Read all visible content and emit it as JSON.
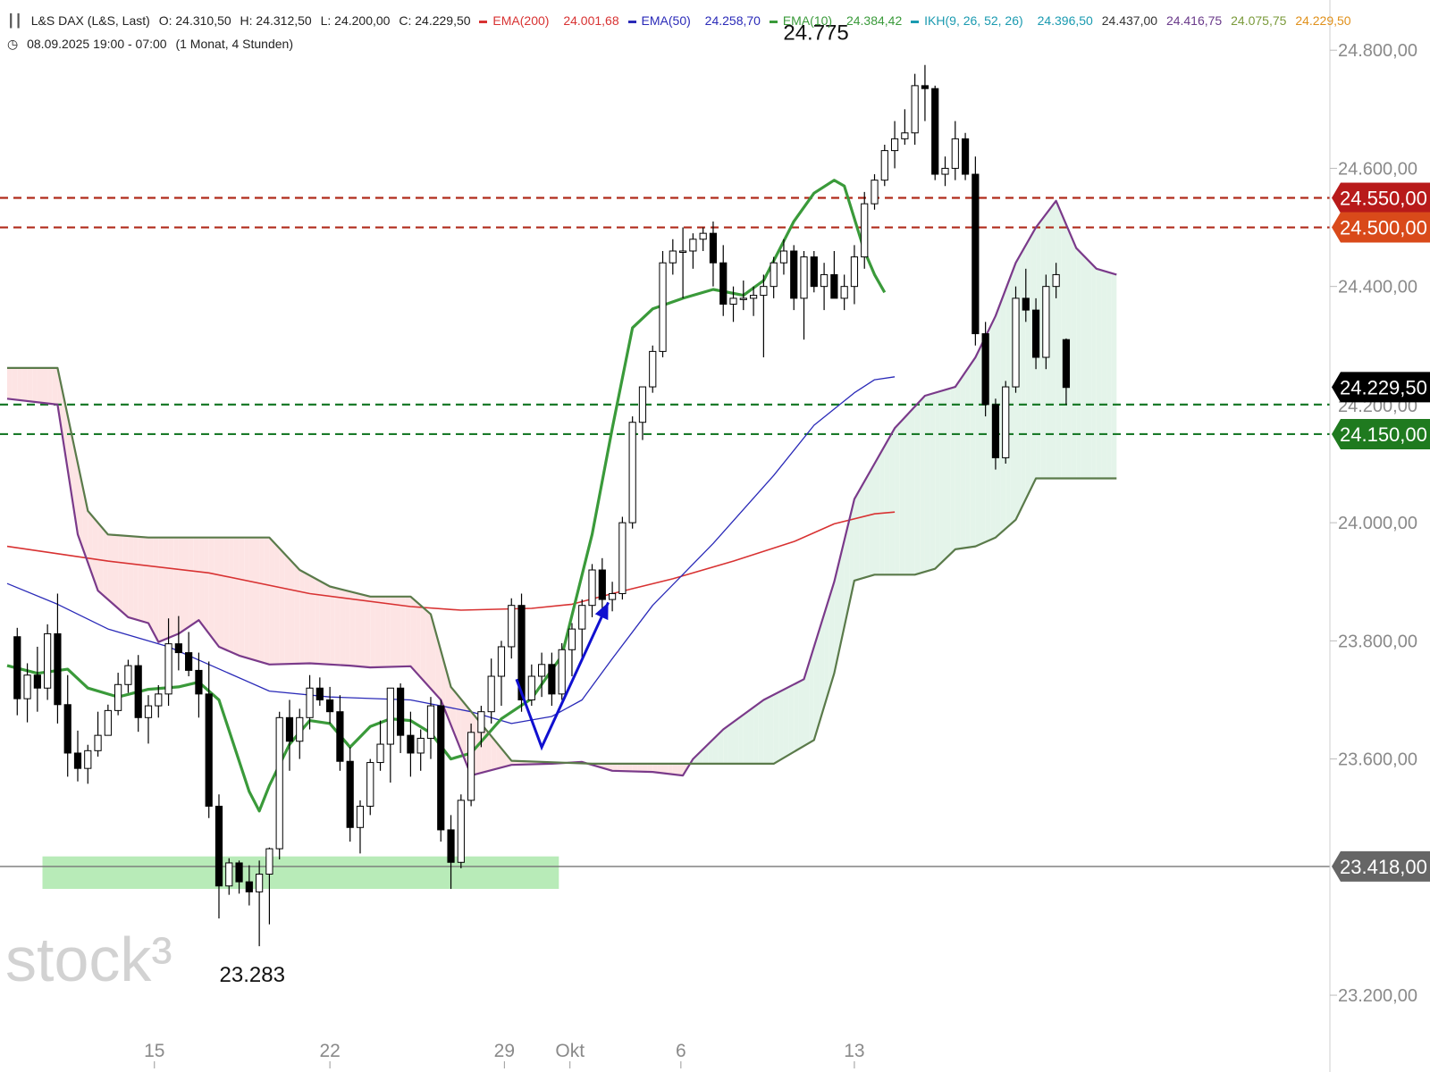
{
  "header": {
    "instrument": "L&S DAX (L&S, Last)",
    "ohlc": {
      "o": "O: 24.310,50",
      "h": "H: 24.312,50",
      "l": "L: 24.200,00",
      "c": "C: 24.229,50"
    },
    "ema200_label": "EMA(200)",
    "ema200_value": "24.001,68",
    "ema50_label": "EMA(50)",
    "ema50_value": "24.258,70",
    "ema10_label": "EMA(10)",
    "ema10_value": "24.384,42",
    "ikh_label": "IKH(9, 26, 52, 26)",
    "ikh_values": [
      "24.396,50",
      "24.437,00",
      "24.416,75",
      "24.075,75",
      "24.229,50"
    ],
    "period": "08.09.2025 19:00 - 07:00",
    "timeframe": "(1 Monat, 4 Stunden)"
  },
  "watermark": "stock³",
  "colors": {
    "ema200": "#d83232",
    "ema50": "#2a2ab8",
    "ema10": "#3a9a3a",
    "senkouA": "#7a3a8a",
    "senkouB": "#5a7a4a",
    "cloud_bear": "#fde4e4",
    "cloud_bull": "#e4f4ea",
    "candle": "#000000",
    "resistance": "#b02a1a",
    "support": "#1a7a2a",
    "zone": "#b8ebb8",
    "arrow": "#1010d0"
  },
  "chart_data": {
    "type": "candlestick",
    "title": "L&S DAX (L&S, Last)",
    "x_ticks": [
      "15",
      "22",
      "29",
      "Okt",
      "6",
      "13"
    ],
    "y_ticks": [
      "24.800,00",
      "24.600,00",
      "24.400,00",
      "24.000,00",
      "23.800,00",
      "23.600,00",
      "23.200,00"
    ],
    "ylim": [
      23070,
      24885
    ],
    "n_slots": 122,
    "x_tick_slots": [
      14.6,
      32,
      49.3,
      55.8,
      66.8,
      84
    ],
    "price_tags": [
      {
        "label": "24.550,00",
        "value": 24550,
        "color": "#b81a1a"
      },
      {
        "label": "24.500,00",
        "value": 24500,
        "color": "#d94a1a"
      },
      {
        "label": "24.229,50",
        "value": 24229.5,
        "color": "#000000"
      },
      {
        "label": "24.150,00",
        "value": 24150,
        "color": "#1f7a1f"
      },
      {
        "label": "23.418,00",
        "value": 23418,
        "color": "#666666"
      }
    ],
    "hidden_tag_text": "24.200,00",
    "annotations": [
      {
        "text": "24.775",
        "slot": 80.2,
        "value": 24775
      },
      {
        "text": "23.283",
        "slot": 24.3,
        "value": 23283
      }
    ],
    "levels": {
      "resistance": [
        24550,
        24500
      ],
      "support": [
        24200,
        24150
      ],
      "line": 23418
    },
    "support_zone": {
      "from_slot": 3.5,
      "to_slot": 54.7,
      "low": 23380,
      "high": 23435
    },
    "arrow": {
      "points": [
        [
          50.5,
          23735
        ],
        [
          53,
          23620
        ],
        [
          59.6,
          23865
        ]
      ]
    },
    "candles": [
      [
        23807,
        23822,
        23674,
        23702
      ],
      [
        23702,
        23762,
        23662,
        23742
      ],
      [
        23742,
        23790,
        23680,
        23720
      ],
      [
        23720,
        23828,
        23700,
        23812
      ],
      [
        23812,
        23880,
        23660,
        23692
      ],
      [
        23692,
        23742,
        23570,
        23610
      ],
      [
        23610,
        23648,
        23562,
        23584
      ],
      [
        23584,
        23624,
        23558,
        23614
      ],
      [
        23614,
        23680,
        23604,
        23640
      ],
      [
        23640,
        23692,
        23640,
        23682
      ],
      [
        23682,
        23746,
        23674,
        23726
      ],
      [
        23726,
        23768,
        23712,
        23758
      ],
      [
        23758,
        23776,
        23646,
        23670
      ],
      [
        23670,
        23708,
        23626,
        23690
      ],
      [
        23690,
        23725,
        23670,
        23710
      ],
      [
        23710,
        23838,
        23690,
        23795
      ],
      [
        23795,
        23842,
        23750,
        23780
      ],
      [
        23780,
        23815,
        23740,
        23750
      ],
      [
        23750,
        23780,
        23670,
        23710
      ],
      [
        23710,
        23765,
        23500,
        23520
      ],
      [
        23520,
        23540,
        23330,
        23385
      ],
      [
        23385,
        23432,
        23370,
        23424
      ],
      [
        23424,
        23428,
        23372,
        23392
      ],
      [
        23392,
        23420,
        23352,
        23375
      ],
      [
        23375,
        23428,
        23283,
        23405
      ],
      [
        23405,
        23450,
        23320,
        23448
      ],
      [
        23448,
        23680,
        23430,
        23670
      ],
      [
        23670,
        23700,
        23580,
        23630
      ],
      [
        23630,
        23685,
        23600,
        23670
      ],
      [
        23670,
        23742,
        23650,
        23720
      ],
      [
        23720,
        23738,
        23690,
        23700
      ],
      [
        23700,
        23722,
        23660,
        23680
      ],
      [
        23680,
        23708,
        23580,
        23596
      ],
      [
        23596,
        23620,
        23460,
        23484
      ],
      [
        23484,
        23530,
        23440,
        23520
      ],
      [
        23520,
        23600,
        23505,
        23594
      ],
      [
        23594,
        23665,
        23580,
        23625
      ],
      [
        23625,
        23710,
        23560,
        23720
      ],
      [
        23720,
        23728,
        23610,
        23640
      ],
      [
        23640,
        23680,
        23570,
        23610
      ],
      [
        23610,
        23650,
        23580,
        23635
      ],
      [
        23635,
        23705,
        23600,
        23690
      ],
      [
        23690,
        23700,
        23460,
        23480
      ],
      [
        23480,
        23505,
        23380,
        23425
      ],
      [
        23425,
        23540,
        23415,
        23530
      ],
      [
        23530,
        23660,
        23520,
        23645
      ],
      [
        23645,
        23690,
        23620,
        23680
      ],
      [
        23680,
        23770,
        23660,
        23740
      ],
      [
        23740,
        23800,
        23690,
        23790
      ],
      [
        23790,
        23872,
        23770,
        23860
      ],
      [
        23860,
        23880,
        23680,
        23700
      ],
      [
        23700,
        23760,
        23690,
        23740
      ],
      [
        23740,
        23780,
        23705,
        23760
      ],
      [
        23760,
        23780,
        23690,
        23710
      ],
      [
        23710,
        23796,
        23700,
        23785
      ],
      [
        23785,
        23830,
        23740,
        23820
      ],
      [
        23820,
        23870,
        23770,
        23860
      ],
      [
        23860,
        23930,
        23840,
        23920
      ],
      [
        23920,
        23940,
        23840,
        23870
      ],
      [
        23870,
        23900,
        23850,
        23880
      ],
      [
        23880,
        24010,
        23870,
        24000
      ],
      [
        24000,
        24180,
        23990,
        24170
      ],
      [
        24170,
        24230,
        24140,
        24230
      ],
      [
        24230,
        24300,
        24220,
        24290
      ],
      [
        24290,
        24460,
        24280,
        24440
      ],
      [
        24440,
        24480,
        24420,
        24460
      ],
      [
        24460,
        24500,
        24380,
        24460
      ],
      [
        24460,
        24490,
        24430,
        24480
      ],
      [
        24480,
        24500,
        24460,
        24490
      ],
      [
        24490,
        24510,
        24400,
        24440
      ],
      [
        24440,
        24470,
        24350,
        24370
      ],
      [
        24370,
        24400,
        24340,
        24380
      ],
      [
        24380,
        24410,
        24360,
        24380
      ],
      [
        24380,
        24400,
        24350,
        24385
      ],
      [
        24385,
        24420,
        24280,
        24400
      ],
      [
        24400,
        24450,
        24380,
        24440
      ],
      [
        24440,
        24480,
        24420,
        24460
      ],
      [
        24460,
        24470,
        24360,
        24380
      ],
      [
        24380,
        24460,
        24310,
        24450
      ],
      [
        24450,
        24460,
        24390,
        24400
      ],
      [
        24400,
        24440,
        24360,
        24420
      ],
      [
        24420,
        24460,
        24380,
        24380
      ],
      [
        24380,
        24420,
        24360,
        24400
      ],
      [
        24400,
        24470,
        24370,
        24450
      ],
      [
        24450,
        24560,
        24430,
        24540
      ],
      [
        24540,
        24590,
        24530,
        24580
      ],
      [
        24580,
        24640,
        24570,
        24630
      ],
      [
        24630,
        24680,
        24600,
        24650
      ],
      [
        24650,
        24700,
        24640,
        24660
      ],
      [
        24660,
        24760,
        24640,
        24740
      ],
      [
        24740,
        24775,
        24680,
        24735
      ],
      [
        24735,
        24740,
        24580,
        24590
      ],
      [
        24590,
        24620,
        24570,
        24600
      ],
      [
        24600,
        24680,
        24580,
        24650
      ],
      [
        24650,
        24660,
        24580,
        24590
      ],
      [
        24590,
        24620,
        24300,
        24320
      ],
      [
        24320,
        24340,
        24180,
        24200
      ],
      [
        24200,
        24210,
        24090,
        24110
      ],
      [
        24110,
        24240,
        24100,
        24230
      ],
      [
        24230,
        24400,
        24220,
        24380
      ],
      [
        24380,
        24430,
        24340,
        24360
      ],
      [
        24360,
        24380,
        24260,
        24280
      ],
      [
        24280,
        24420,
        24260,
        24400
      ],
      [
        24400,
        24440,
        24380,
        24420
      ],
      [
        24310,
        24312,
        24200,
        24229
      ]
    ],
    "series": [
      {
        "name": "EMA(200)",
        "values": [
          [
            0,
            23960
          ],
          [
            10,
            23935
          ],
          [
            20,
            23915
          ],
          [
            30,
            23880
          ],
          [
            40,
            23858
          ],
          [
            45,
            23852
          ],
          [
            52,
            23855
          ],
          [
            56,
            23862
          ],
          [
            60,
            23880
          ],
          [
            66,
            23905
          ],
          [
            72,
            23935
          ],
          [
            78,
            23968
          ],
          [
            82,
            23998
          ],
          [
            86,
            24015
          ],
          [
            88,
            24018
          ]
        ]
      },
      {
        "name": "EMA(50)",
        "values": [
          [
            0,
            23897
          ],
          [
            5,
            23862
          ],
          [
            10,
            23820
          ],
          [
            16,
            23790
          ],
          [
            20,
            23760
          ],
          [
            26,
            23715
          ],
          [
            32,
            23705
          ],
          [
            40,
            23700
          ],
          [
            46,
            23680
          ],
          [
            50,
            23660
          ],
          [
            54,
            23672
          ],
          [
            57,
            23700
          ],
          [
            60,
            23770
          ],
          [
            64,
            23860
          ],
          [
            70,
            23965
          ],
          [
            76,
            24080
          ],
          [
            80,
            24165
          ],
          [
            84,
            24220
          ],
          [
            86,
            24242
          ],
          [
            88,
            24247
          ]
        ]
      },
      {
        "name": "EMA(10)",
        "values": [
          [
            0,
            23758
          ],
          [
            3,
            23745
          ],
          [
            6,
            23752
          ],
          [
            8,
            23720
          ],
          [
            11,
            23705
          ],
          [
            14,
            23718
          ],
          [
            17,
            23722
          ],
          [
            19,
            23730
          ],
          [
            21,
            23700
          ],
          [
            24,
            23545
          ],
          [
            25,
            23512
          ],
          [
            26,
            23555
          ],
          [
            28,
            23625
          ],
          [
            30,
            23665
          ],
          [
            32,
            23660
          ],
          [
            34,
            23620
          ],
          [
            36,
            23655
          ],
          [
            38,
            23668
          ],
          [
            40,
            23665
          ],
          [
            42,
            23644
          ],
          [
            44,
            23600
          ],
          [
            46,
            23610
          ],
          [
            49,
            23668
          ],
          [
            52,
            23702
          ],
          [
            55,
            23775
          ],
          [
            58,
            23980
          ],
          [
            60,
            24160
          ],
          [
            62,
            24330
          ],
          [
            64,
            24362
          ],
          [
            67,
            24380
          ],
          [
            70,
            24395
          ],
          [
            73,
            24385
          ],
          [
            75,
            24410
          ],
          [
            78,
            24510
          ],
          [
            80,
            24558
          ],
          [
            82,
            24580
          ],
          [
            83,
            24570
          ],
          [
            85,
            24460
          ],
          [
            86,
            24420
          ],
          [
            87,
            24390
          ]
        ]
      },
      {
        "name": "Senkou A",
        "values": [
          [
            0,
            24210
          ],
          [
            5,
            24200
          ],
          [
            7,
            23980
          ],
          [
            9,
            23885
          ],
          [
            12,
            23840
          ],
          [
            14,
            23830
          ],
          [
            15,
            23798
          ],
          [
            17,
            23812
          ],
          [
            19,
            23835
          ],
          [
            21,
            23790
          ],
          [
            23,
            23775
          ],
          [
            26,
            23760
          ],
          [
            30,
            23762
          ],
          [
            34,
            23758
          ],
          [
            36,
            23755
          ],
          [
            40,
            23757
          ],
          [
            43,
            23700
          ],
          [
            46,
            23572
          ],
          [
            50,
            23590
          ],
          [
            54,
            23592
          ],
          [
            57,
            23595
          ],
          [
            60,
            23580
          ],
          [
            64,
            23578
          ],
          [
            67,
            23572
          ],
          [
            68,
            23600
          ],
          [
            71,
            23650
          ],
          [
            75,
            23700
          ],
          [
            79,
            23735
          ],
          [
            82,
            23900
          ],
          [
            84,
            24040
          ],
          [
            86,
            24100
          ],
          [
            88,
            24160
          ],
          [
            91,
            24215
          ],
          [
            94,
            24230
          ],
          [
            96,
            24280
          ],
          [
            98,
            24350
          ],
          [
            100,
            24440
          ],
          [
            102,
            24500
          ],
          [
            104,
            24545
          ],
          [
            106,
            24465
          ],
          [
            108,
            24430
          ],
          [
            110,
            24420
          ]
        ]
      },
      {
        "name": "Senkou B",
        "values": [
          [
            0,
            24262
          ],
          [
            5,
            24262
          ],
          [
            8,
            24020
          ],
          [
            10,
            23980
          ],
          [
            14,
            23975
          ],
          [
            20,
            23975
          ],
          [
            26,
            23975
          ],
          [
            29,
            23920
          ],
          [
            32,
            23892
          ],
          [
            36,
            23875
          ],
          [
            40,
            23875
          ],
          [
            42,
            23845
          ],
          [
            44,
            23722
          ],
          [
            50,
            23597
          ],
          [
            58,
            23592
          ],
          [
            65,
            23592
          ],
          [
            70,
            23592
          ],
          [
            76,
            23592
          ],
          [
            80,
            23632
          ],
          [
            82,
            23745
          ],
          [
            84,
            23902
          ],
          [
            86,
            23912
          ],
          [
            90,
            23912
          ],
          [
            92,
            23922
          ],
          [
            94,
            23955
          ],
          [
            96,
            23960
          ],
          [
            98,
            23975
          ],
          [
            100,
            24005
          ],
          [
            102,
            24075
          ],
          [
            104,
            24075
          ],
          [
            110,
            24075
          ]
        ]
      }
    ],
    "grid": false,
    "legend": "top-left"
  }
}
